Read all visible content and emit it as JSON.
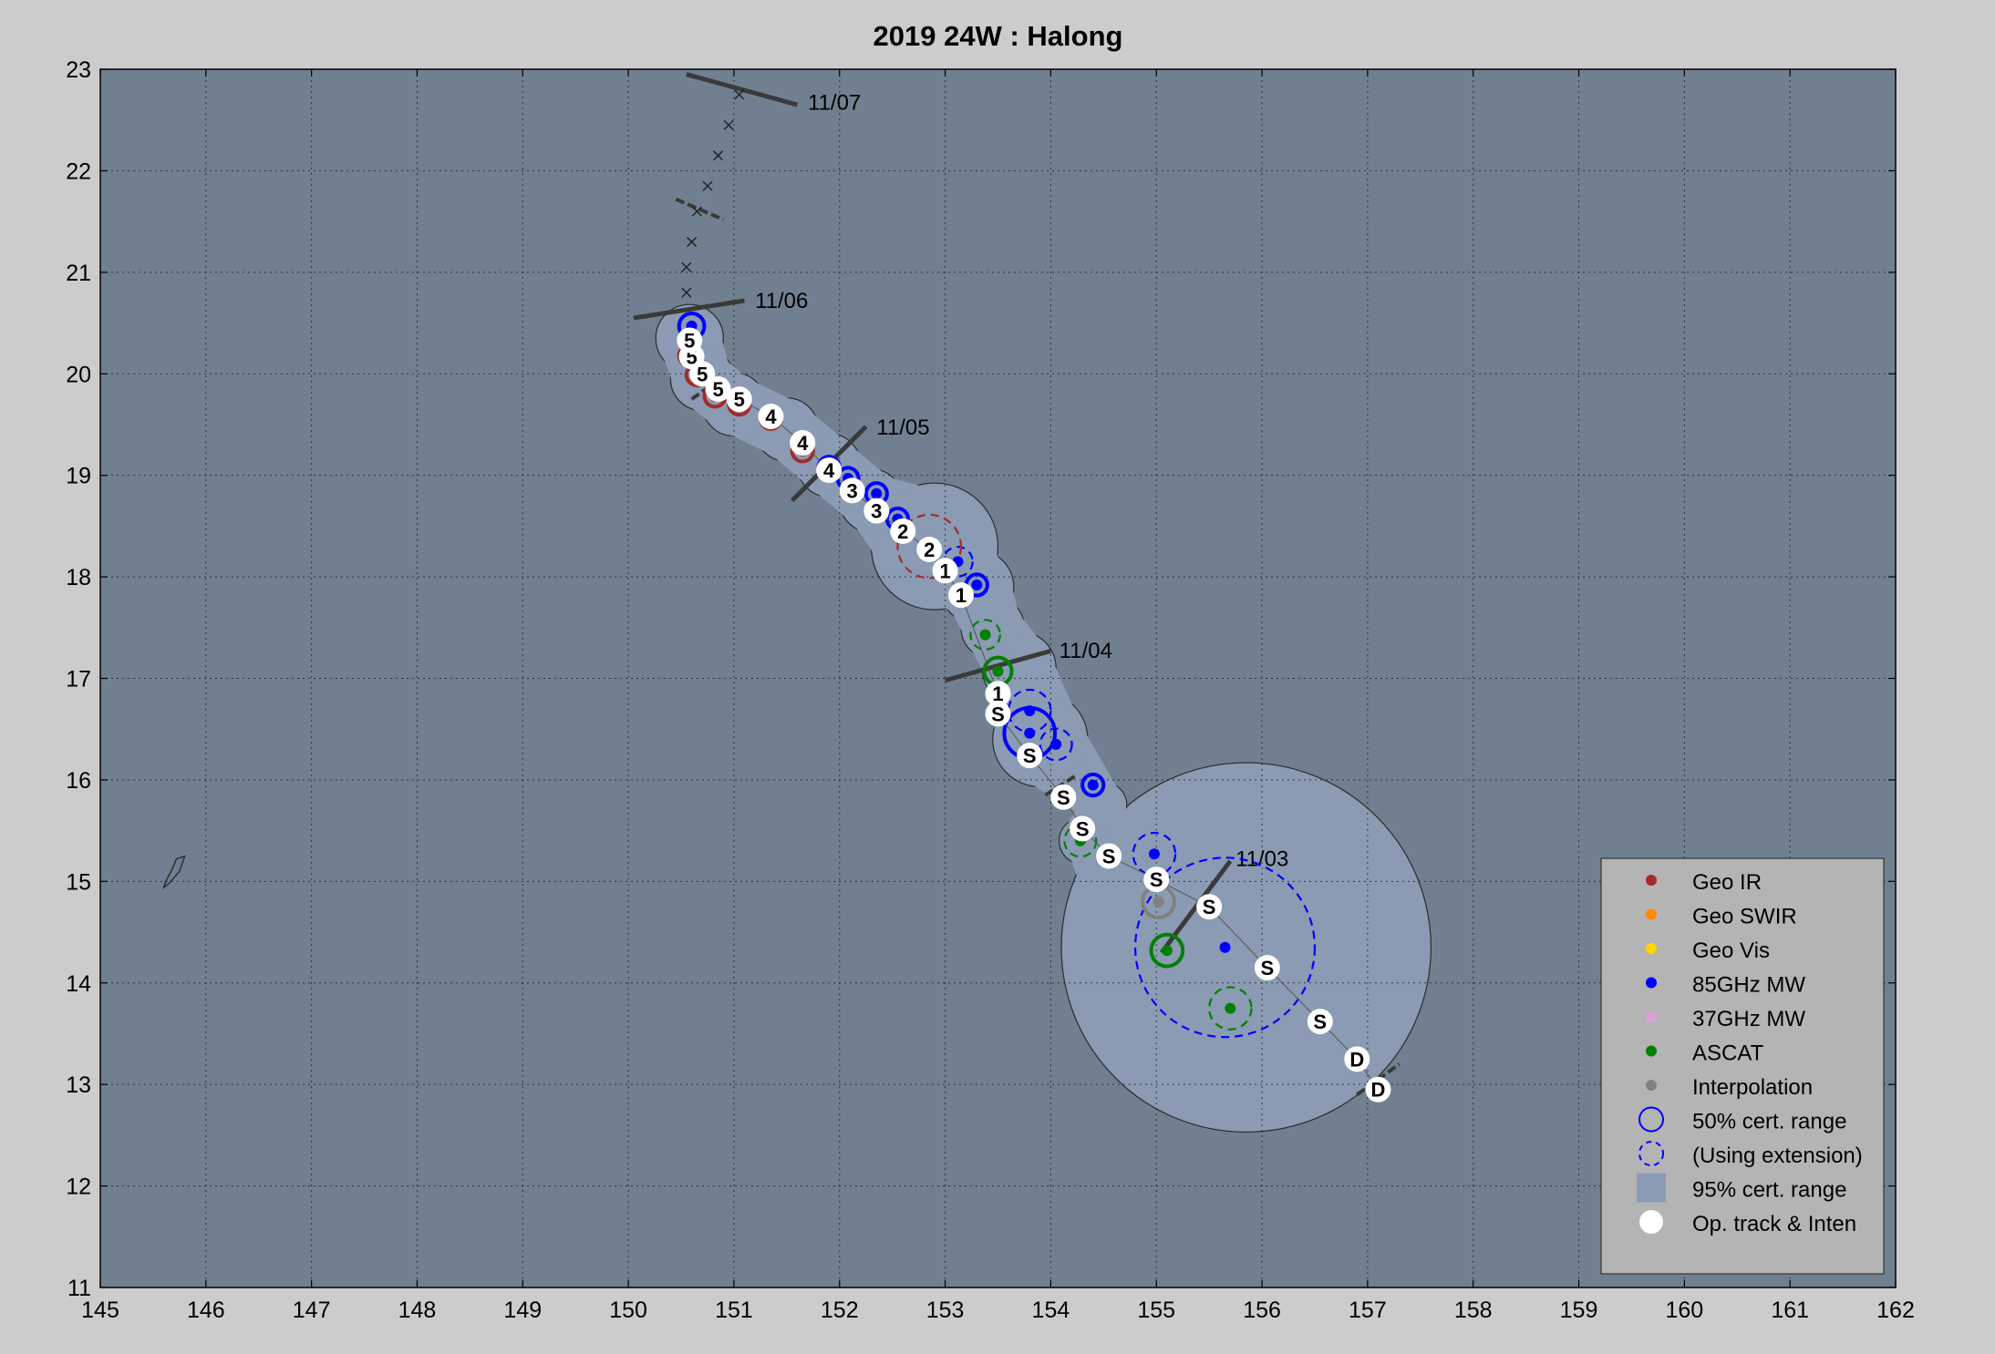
{
  "chart_data": {
    "type": "scatter",
    "title": "2019  24W :  Halong",
    "xlim": [
      145,
      162
    ],
    "ylim": [
      11,
      23
    ],
    "x_ticks": [
      "145",
      "146",
      "147",
      "148",
      "149",
      "150",
      "151",
      "152",
      "153",
      "154",
      "155",
      "156",
      "157",
      "158",
      "159",
      "160",
      "161",
      "162"
    ],
    "y_ticks": [
      "11",
      "12",
      "13",
      "14",
      "15",
      "16",
      "17",
      "18",
      "19",
      "20",
      "21",
      "22",
      "23"
    ],
    "grid": true,
    "colors": {
      "background": "#cccccc",
      "plot_bg": "#708090",
      "cone": "#8a9bb3",
      "geo_ir": "#a52a2a",
      "geo_swir": "#ff8c00",
      "geo_vis": "#ffd700",
      "mw85": "#0000ff",
      "mw37": "#dda0dd",
      "ascat": "#008000",
      "interp": "#808080",
      "optrack": "#ffffff"
    },
    "date_labels": [
      {
        "text": "11/07",
        "x": 151.7,
        "y": 22.6
      },
      {
        "text": "11/06",
        "x": 151.2,
        "y": 20.65
      },
      {
        "text": "11/05",
        "x": 152.35,
        "y": 19.4
      },
      {
        "text": "11/04",
        "x": 154.08,
        "y": 17.2
      },
      {
        "text": "11/03",
        "x": 155.75,
        "y": 15.15
      }
    ],
    "date_ticks": [
      {
        "x1": 150.55,
        "y1": 22.95,
        "x2": 151.6,
        "y2": 22.65
      },
      {
        "x1": 150.05,
        "y1": 20.55,
        "x2": 151.1,
        "y2": 20.72
      },
      {
        "x1": 151.55,
        "y1": 18.75,
        "x2": 152.25,
        "y2": 19.48
      },
      {
        "x1": 153.0,
        "y1": 16.98,
        "x2": 154.0,
        "y2": 17.27
      },
      {
        "x1": 155.05,
        "y1": 14.3,
        "x2": 155.7,
        "y2": 15.2
      }
    ],
    "forecast_ticks": [
      {
        "x1": 150.45,
        "y1": 21.72,
        "x2": 150.9,
        "y2": 21.52
      },
      {
        "x1": 150.6,
        "y1": 19.75,
        "x2": 150.8,
        "y2": 19.9
      },
      {
        "x1": 153.95,
        "y1": 15.85,
        "x2": 154.25,
        "y2": 16.05
      },
      {
        "x1": 156.9,
        "y1": 12.9,
        "x2": 157.3,
        "y2": 13.2
      }
    ],
    "forecast_track": [
      [
        150.55,
        20.8
      ],
      [
        150.55,
        21.05
      ],
      [
        150.6,
        21.3
      ],
      [
        150.65,
        21.6
      ],
      [
        150.75,
        21.85
      ],
      [
        150.85,
        22.15
      ],
      [
        150.95,
        22.45
      ],
      [
        151.05,
        22.75
      ]
    ],
    "op_track": [
      {
        "x": 157.1,
        "y": 12.95,
        "label": "D"
      },
      {
        "x": 156.9,
        "y": 13.25,
        "label": "D"
      },
      {
        "x": 156.55,
        "y": 13.62,
        "label": "S"
      },
      {
        "x": 156.05,
        "y": 14.15,
        "label": "S"
      },
      {
        "x": 155.5,
        "y": 14.75,
        "label": "S"
      },
      {
        "x": 155.0,
        "y": 15.02,
        "label": "S"
      },
      {
        "x": 154.55,
        "y": 15.25,
        "label": "S"
      },
      {
        "x": 154.3,
        "y": 15.52,
        "label": "S"
      },
      {
        "x": 154.12,
        "y": 15.83,
        "label": "S"
      },
      {
        "x": 153.8,
        "y": 16.24,
        "label": "S"
      },
      {
        "x": 153.5,
        "y": 16.65,
        "label": "S"
      },
      {
        "x": 153.5,
        "y": 16.85,
        "label": "1"
      },
      {
        "x": 153.15,
        "y": 17.82,
        "label": "1"
      },
      {
        "x": 153.0,
        "y": 18.06,
        "label": "1"
      },
      {
        "x": 152.85,
        "y": 18.27,
        "label": "2"
      },
      {
        "x": 152.6,
        "y": 18.45,
        "label": "2"
      },
      {
        "x": 152.35,
        "y": 18.65,
        "label": "3"
      },
      {
        "x": 152.12,
        "y": 18.85,
        "label": "3"
      },
      {
        "x": 151.9,
        "y": 19.05,
        "label": "4"
      },
      {
        "x": 151.65,
        "y": 19.32,
        "label": "4"
      },
      {
        "x": 151.35,
        "y": 19.58,
        "label": "4"
      },
      {
        "x": 151.05,
        "y": 19.75,
        "label": "5"
      },
      {
        "x": 150.85,
        "y": 19.85,
        "label": "5"
      },
      {
        "x": 150.7,
        "y": 20.0,
        "label": "5"
      },
      {
        "x": 150.6,
        "y": 20.17,
        "label": "5"
      },
      {
        "x": 150.58,
        "y": 20.33,
        "label": "5"
      }
    ],
    "fixes": [
      {
        "type": "ascat",
        "x": 155.1,
        "y": 14.32,
        "r": 0.15,
        "dash": false
      },
      {
        "type": "ascat",
        "x": 155.7,
        "y": 13.75,
        "r": 0.2,
        "dash": true
      },
      {
        "type": "ascat",
        "x": 154.28,
        "y": 15.4,
        "r": 0.15,
        "dash": true
      },
      {
        "type": "ascat",
        "x": 153.5,
        "y": 17.07,
        "r": 0.13,
        "dash": false
      },
      {
        "type": "ascat",
        "x": 153.38,
        "y": 17.43,
        "r": 0.14,
        "dash": true
      },
      {
        "type": "mw85",
        "x": 155.65,
        "y": 14.35,
        "r": 0.85,
        "dash": true
      },
      {
        "type": "mw85",
        "x": 154.98,
        "y": 15.27,
        "r": 0.2,
        "dash": true
      },
      {
        "type": "mw85",
        "x": 154.4,
        "y": 15.95,
        "r": 0.1,
        "dash": false
      },
      {
        "type": "mw85",
        "x": 154.05,
        "y": 16.35,
        "r": 0.15,
        "dash": true
      },
      {
        "type": "mw85",
        "x": 153.8,
        "y": 16.46,
        "r": 0.24,
        "dash": false
      },
      {
        "type": "mw85",
        "x": 153.8,
        "y": 16.68,
        "r": 0.2,
        "dash": true
      },
      {
        "type": "mw85",
        "x": 153.3,
        "y": 17.92,
        "r": 0.1,
        "dash": false
      },
      {
        "type": "mw85",
        "x": 153.12,
        "y": 18.15,
        "r": 0.14,
        "dash": true
      },
      {
        "type": "mw85",
        "x": 152.55,
        "y": 18.57,
        "r": 0.1,
        "dash": false
      },
      {
        "type": "mw85",
        "x": 152.35,
        "y": 18.82,
        "r": 0.1,
        "dash": false
      },
      {
        "type": "mw85",
        "x": 152.08,
        "y": 18.97,
        "r": 0.1,
        "dash": false
      },
      {
        "type": "mw85",
        "x": 151.9,
        "y": 19.08,
        "r": 0.1,
        "dash": false
      },
      {
        "type": "mw85",
        "x": 150.6,
        "y": 20.47,
        "r": 0.12,
        "dash": false
      },
      {
        "type": "geo_ir",
        "x": 152.85,
        "y": 18.3,
        "r": 0.3,
        "dash": true
      },
      {
        "type": "geo_ir",
        "x": 151.65,
        "y": 19.24,
        "r": 0.1,
        "dash": false
      },
      {
        "type": "geo_ir",
        "x": 151.35,
        "y": 19.56,
        "r": 0.1,
        "dash": false
      },
      {
        "type": "geo_ir",
        "x": 151.05,
        "y": 19.7,
        "r": 0.1,
        "dash": false
      },
      {
        "type": "geo_ir",
        "x": 150.82,
        "y": 19.78,
        "r": 0.1,
        "dash": false
      },
      {
        "type": "geo_ir",
        "x": 150.65,
        "y": 19.99,
        "r": 0.1,
        "dash": false
      },
      {
        "type": "geo_ir",
        "x": 150.58,
        "y": 20.18,
        "r": 0.1,
        "dash": false
      },
      {
        "type": "interp",
        "x": 155.02,
        "y": 14.8,
        "r": 0.15,
        "dash": false
      }
    ],
    "legend": [
      {
        "label": "Geo IR",
        "marker": "dot",
        "color": "#a52a2a"
      },
      {
        "label": "Geo SWIR",
        "marker": "dot",
        "color": "#ff8c00"
      },
      {
        "label": "Geo Vis",
        "marker": "dot",
        "color": "#ffd700"
      },
      {
        "label": "85GHz MW",
        "marker": "dot",
        "color": "#0000ff"
      },
      {
        "label": "37GHz MW",
        "marker": "dot",
        "color": "#dda0dd"
      },
      {
        "label": "ASCAT",
        "marker": "dot",
        "color": "#008000"
      },
      {
        "label": "Interpolation",
        "marker": "dot",
        "color": "#808080"
      },
      {
        "label": "50% cert. range",
        "marker": "circle",
        "color": "#0000ff"
      },
      {
        "label": "(Using extension)",
        "marker": "dashcircle",
        "color": "#0000ff"
      },
      {
        "label": "95% cert. range",
        "marker": "square",
        "color": "#8a9bb3"
      },
      {
        "label": "Op. track & Inten",
        "marker": "bigdot",
        "color": "#ffffff"
      }
    ],
    "legend_position": "bottom-right"
  }
}
